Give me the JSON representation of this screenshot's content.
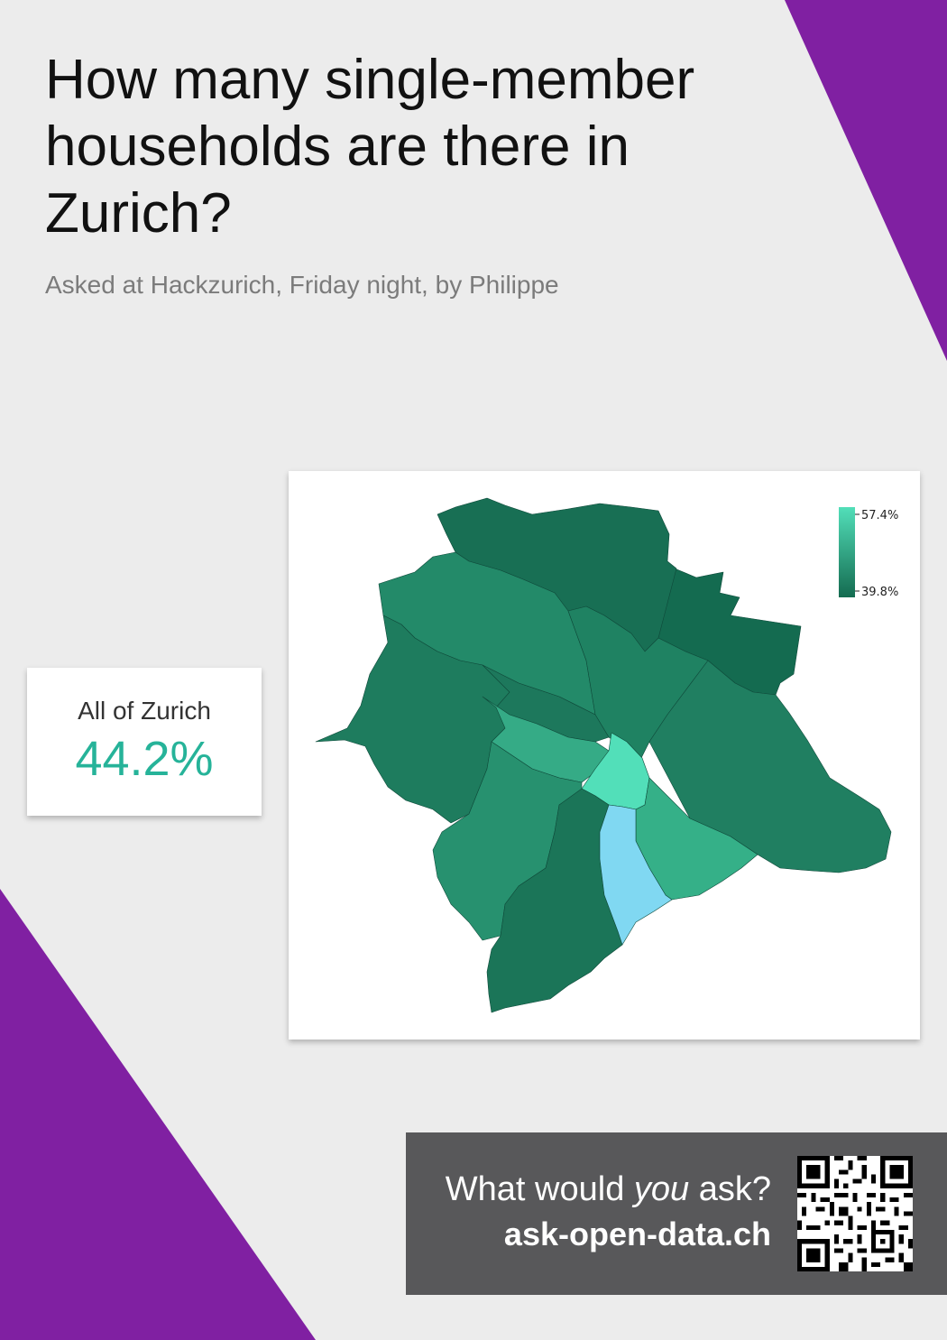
{
  "header": {
    "title": "How many single-member households are there in Zurich?",
    "subtitle": "Asked at Hackzurich, Friday night, by Philippe"
  },
  "summary": {
    "label": "All of Zurich",
    "value": "44.2%"
  },
  "map": {
    "legend": {
      "max_label": "57.4%",
      "min_label": "39.8%"
    },
    "colors": {
      "scale_high": "#52dfb9",
      "scale_low": "#146b50",
      "lake": "#80d8f2"
    }
  },
  "cta": {
    "question_prefix": "What would ",
    "question_emphasis": "you",
    "question_suffix": " ask?",
    "url": "ask-open-data.ch"
  },
  "colors": {
    "background": "#ececec",
    "accent_purple": "#8020a2",
    "stat_value": "#26b399",
    "cta_background": "#58585a"
  }
}
